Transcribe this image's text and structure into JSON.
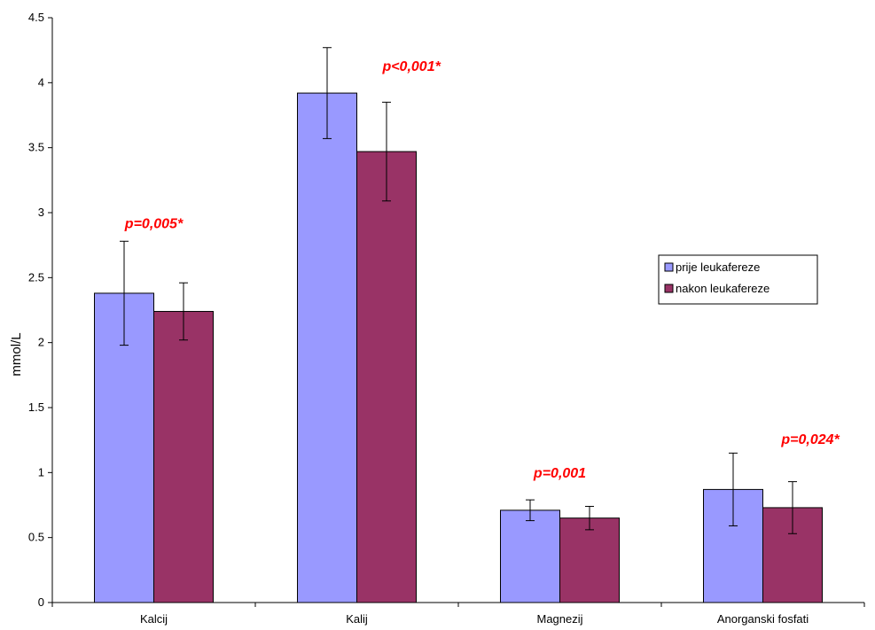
{
  "chart_data": {
    "type": "bar",
    "title": "",
    "xlabel": "",
    "ylabel": "mmol/L",
    "ylim": [
      0,
      4.5
    ],
    "yticks": [
      "0",
      "0.5",
      "1",
      "1.5",
      "2",
      "2.5",
      "3",
      "3.5",
      "4",
      "4.5"
    ],
    "categories": [
      "Kalcij",
      "Kalij",
      "Magnezij",
      "Anorganski fosfati"
    ],
    "series": [
      {
        "name": "prije leukafereze",
        "color": "#9999FF",
        "values": [
          2.38,
          3.92,
          0.71,
          0.87
        ],
        "error_low": [
          1.98,
          3.57,
          0.63,
          0.59
        ],
        "error_high": [
          2.78,
          4.27,
          0.79,
          1.15
        ]
      },
      {
        "name": "nakon leukafereze",
        "color": "#993366",
        "values": [
          2.24,
          3.47,
          0.65,
          0.73
        ],
        "error_low": [
          2.02,
          3.09,
          0.56,
          0.53
        ],
        "error_high": [
          2.46,
          3.85,
          0.74,
          0.93
        ]
      }
    ],
    "annotations": [
      {
        "text": "p=0,005*",
        "category": "Kalcij",
        "y": 2.88
      },
      {
        "text": "p<0,001*",
        "category": "Kalij",
        "y": 4.09
      },
      {
        "text": "p=0,001",
        "category": "Magnezij",
        "y": 0.96
      },
      {
        "text": "p=0,024*",
        "category": "Anorganski fosfati",
        "y": 1.22
      }
    ],
    "annotation_color": "#FF0000",
    "legend_position": "right",
    "grid": false
  }
}
